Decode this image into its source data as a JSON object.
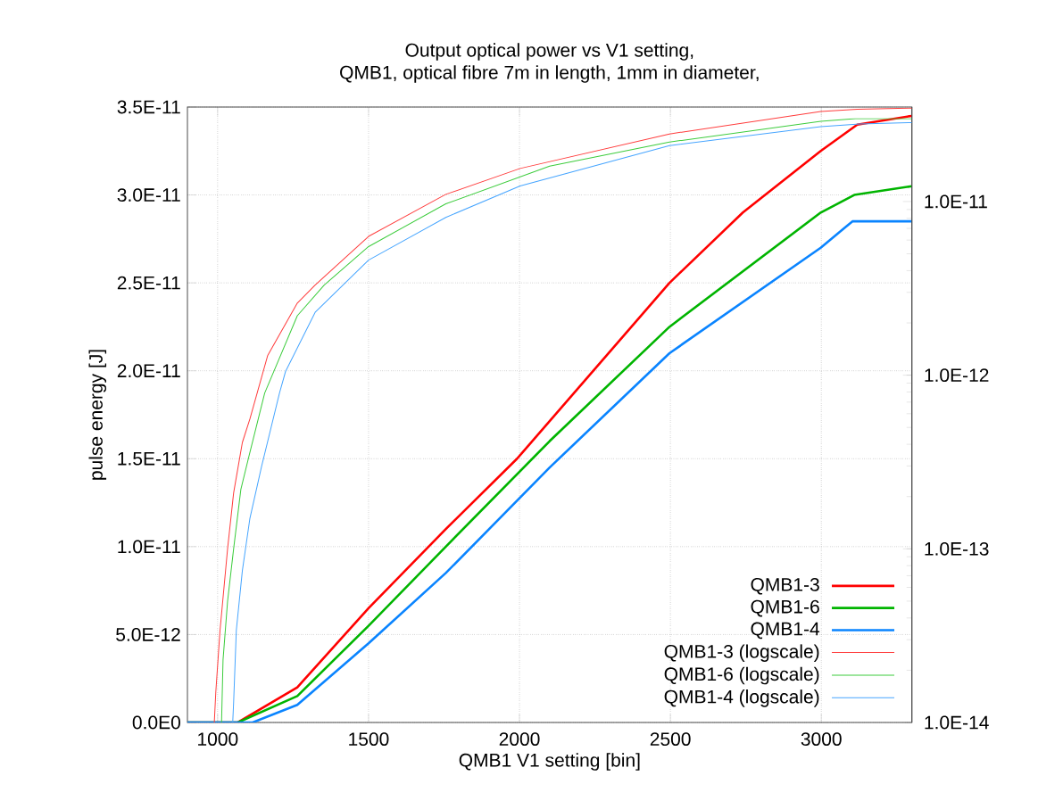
{
  "chart_data": {
    "type": "line",
    "title": "Output optical power vs V1 setting,",
    "subtitle": "QMB1, optical fibre 7m in length, 1mm in diameter,",
    "xlabel": "QMB1 V1 setting [bin]",
    "ylabel": "pulse energy [J]",
    "xlim": [
      900,
      3300
    ],
    "xticks": [
      1000,
      1500,
      2000,
      2500,
      3000
    ],
    "ylim": [
      0,
      3.5e-11
    ],
    "yticks": [
      {
        "value": 0,
        "label": "0.0E0"
      },
      {
        "value": 5e-12,
        "label": "5.0E-12"
      },
      {
        "value": 1e-11,
        "label": "1.0E-11"
      },
      {
        "value": 1.5e-11,
        "label": "1.5E-11"
      },
      {
        "value": 2e-11,
        "label": "2.0E-11"
      },
      {
        "value": 2.5e-11,
        "label": "2.5E-11"
      },
      {
        "value": 3e-11,
        "label": "3.0E-11"
      },
      {
        "value": 3.5e-11,
        "label": "3.5E-11"
      }
    ],
    "y2lim": [
      1e-14,
      3.5e-11
    ],
    "y2ticks": [
      {
        "value": 1e-14,
        "label": "1.0E-14"
      },
      {
        "value": 1e-13,
        "label": "1.0E-13"
      },
      {
        "value": 1e-12,
        "label": "1.0E-12"
      },
      {
        "value": 1e-11,
        "label": "1.0E-11"
      }
    ],
    "log": "y2",
    "grid": true,
    "legend": "bottom right",
    "series": [
      {
        "name": "QMB1-3",
        "color": "#ff0000",
        "x": [
          900,
          1050,
          1067,
          1264,
          1500,
          1756,
          1992,
          2497,
          2740,
          2998,
          3119,
          3300
        ],
        "values": [
          0,
          0,
          0,
          2e-12,
          6.5e-12,
          1.1e-11,
          1.5e-11,
          2.5e-11,
          2.9e-11,
          3.25e-11,
          3.4e-11,
          3.45e-11
        ]
      },
      {
        "name": "QMB1-6",
        "color": "#00b400",
        "x": [
          900,
          1050,
          1067,
          1264,
          1500,
          1756,
          2100,
          2497,
          2998,
          3109,
          3300
        ],
        "values": [
          0,
          0,
          0,
          1.5e-12,
          5.5e-12,
          1e-11,
          1.6e-11,
          2.25e-11,
          2.9e-11,
          3e-11,
          3.05e-11
        ]
      },
      {
        "name": "QMB1-4",
        "color": "#0a84ff",
        "x": [
          900,
          1060,
          1116,
          1264,
          1500,
          1756,
          2100,
          2497,
          2998,
          3103,
          3300
        ],
        "values": [
          0,
          0,
          0,
          1e-12,
          4.5e-12,
          8.5e-12,
          1.45e-11,
          2.1e-11,
          2.7e-11,
          2.85e-11,
          2.85e-11
        ]
      },
      {
        "name": "QMB1-3 (logscale)",
        "color": "#ff3c3c",
        "axis": "y2",
        "x": [
          989,
          994,
          1008,
          1033,
          1053,
          1082,
          1107,
          1131,
          1166,
          1264,
          1323,
          1500,
          1756,
          2002,
          2497,
          2998,
          3119,
          3300
        ],
        "values": [
          1e-14,
          1.5e-14,
          3.4e-14,
          1e-13,
          2.1e-13,
          4.1e-13,
          5.6e-13,
          7.9e-13,
          1.3e-12,
          2.6e-12,
          3.3e-12,
          6.3e-12,
          1.1e-11,
          1.55e-11,
          2.45e-11,
          3.3e-11,
          3.4e-11,
          3.45e-11
        ]
      },
      {
        "name": "QMB1-6 (logscale)",
        "color": "#3ccc3c",
        "axis": "y2",
        "x": [
          1013,
          1018,
          1033,
          1053,
          1077,
          1107,
          1156,
          1264,
          1353,
          1500,
          1756,
          2100,
          2497,
          2998,
          3113,
          3300
        ],
        "values": [
          1e-14,
          2.3e-14,
          5e-14,
          1e-13,
          2.2e-13,
          3.6e-13,
          7.9e-13,
          2.2e-12,
          3.3e-12,
          5.5e-12,
          9.7e-12,
          1.6e-11,
          2.2e-11,
          2.9e-11,
          3e-11,
          3e-11
        ]
      },
      {
        "name": "QMB1-4 (logscale)",
        "color": "#46a5ff",
        "axis": "y2",
        "x": [
          1050,
          1053,
          1062,
          1082,
          1107,
          1146,
          1205,
          1225,
          1323,
          1500,
          1756,
          2002,
          2497,
          2998,
          3127,
          3300
        ],
        "values": [
          1e-14,
          1.3e-14,
          3.4e-14,
          7.5e-14,
          1.5e-13,
          3e-13,
          7.9e-13,
          1.05e-12,
          2.3e-12,
          4.6e-12,
          8.1e-12,
          1.23e-11,
          2.1e-11,
          2.7e-11,
          2.8e-11,
          2.85e-11
        ]
      }
    ]
  }
}
